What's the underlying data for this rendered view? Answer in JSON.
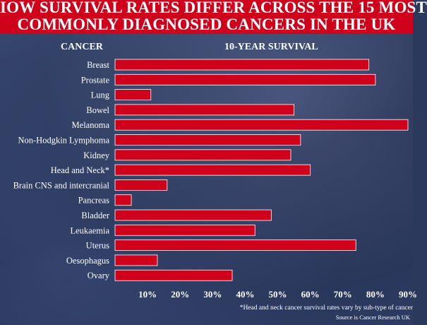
{
  "title": {
    "line1": "IOW SURVIVAL RATES DIFFER ACROSS THE 15 MOST",
    "line2": "COMMONLY DIAGNOSED CANCERS IN THE UK"
  },
  "column_headers": {
    "category": "CANCER",
    "value": "10-YEAR SURVIVAL"
  },
  "chart_data": {
    "type": "bar",
    "orientation": "horizontal",
    "categories": [
      "Breast",
      "Prostate",
      "Lung",
      "Bowel",
      "Melanoma",
      "Non-Hodgkin Lymphoma",
      "Kidney",
      "Head and Neck*",
      "Brain CNS and intercranial",
      "Pancreas",
      "Bladder",
      "Leukaemia",
      "Uterus",
      "Oesophagus",
      "Ovary"
    ],
    "values": [
      78,
      80,
      11,
      55,
      90,
      57,
      54,
      60,
      16,
      5,
      48,
      43,
      74,
      13,
      36
    ],
    "xlim": [
      0,
      90
    ],
    "tick_values": [
      10,
      20,
      30,
      40,
      50,
      60,
      70,
      80,
      90
    ],
    "tick_labels": [
      "10%",
      "20%",
      "30%",
      "40%",
      "50%",
      "60%",
      "70%",
      "80%",
      "90%"
    ],
    "bar_color": "#d0021b",
    "grid": false,
    "legend": "none"
  },
  "footnote": "*Head and neck cancer survival rates vary by sub-type of cancer",
  "source": "Source is Cancer Research UK",
  "colors": {
    "banner": "#d0021b",
    "bar": "#d0021b",
    "text": "#ffffff"
  }
}
